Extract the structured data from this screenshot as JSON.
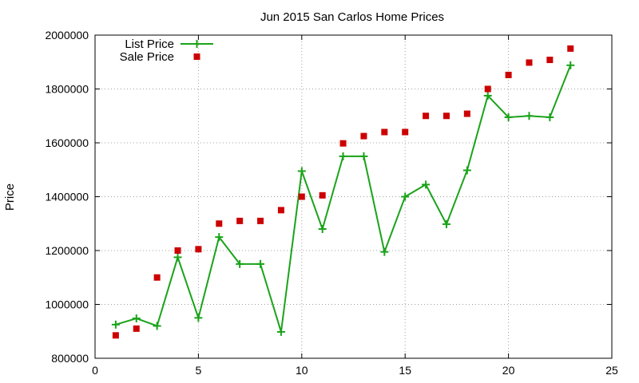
{
  "chart_data": {
    "type": "line",
    "title": "Jun 2015 San Carlos Home Prices",
    "xlabel": "",
    "ylabel": "Price",
    "xlim": [
      0,
      25
    ],
    "ylim": [
      800000,
      2000000
    ],
    "x_ticks": [
      "0",
      "5",
      "10",
      "15",
      "20",
      "25"
    ],
    "y_ticks": [
      "800000",
      "1000000",
      "1200000",
      "1400000",
      "1600000",
      "1800000",
      "2000000"
    ],
    "grid": true,
    "legend_position": "top-left",
    "series": [
      {
        "name": "List Price",
        "style": "line-with-plus-markers",
        "color": "#1aa31a",
        "x": [
          1,
          2,
          3,
          4,
          5,
          6,
          7,
          8,
          9,
          10,
          11,
          12,
          13,
          14,
          15,
          16,
          17,
          18,
          19,
          20,
          21,
          22,
          23
        ],
        "values": [
          925000,
          948000,
          920000,
          1175000,
          950000,
          1250000,
          1150000,
          1150000,
          898000,
          1495000,
          1280000,
          1550000,
          1550000,
          1195000,
          1400000,
          1445000,
          1298000,
          1498000,
          1775000,
          1695000,
          1700000,
          1695000,
          1888000
        ]
      },
      {
        "name": "Sale Price",
        "style": "square-markers",
        "color": "#cc0000",
        "x": [
          1,
          2,
          3,
          4,
          5,
          6,
          7,
          8,
          9,
          10,
          11,
          12,
          13,
          14,
          15,
          16,
          17,
          18,
          19,
          20,
          21,
          22,
          23
        ],
        "values": [
          885000,
          910000,
          1100000,
          1200000,
          1205000,
          1300000,
          1310000,
          1310000,
          1350000,
          1400000,
          1405000,
          1598000,
          1625000,
          1640000,
          1640000,
          1700000,
          1700000,
          1708000,
          1800000,
          1852000,
          1898000,
          1908000,
          1950000
        ]
      }
    ]
  }
}
